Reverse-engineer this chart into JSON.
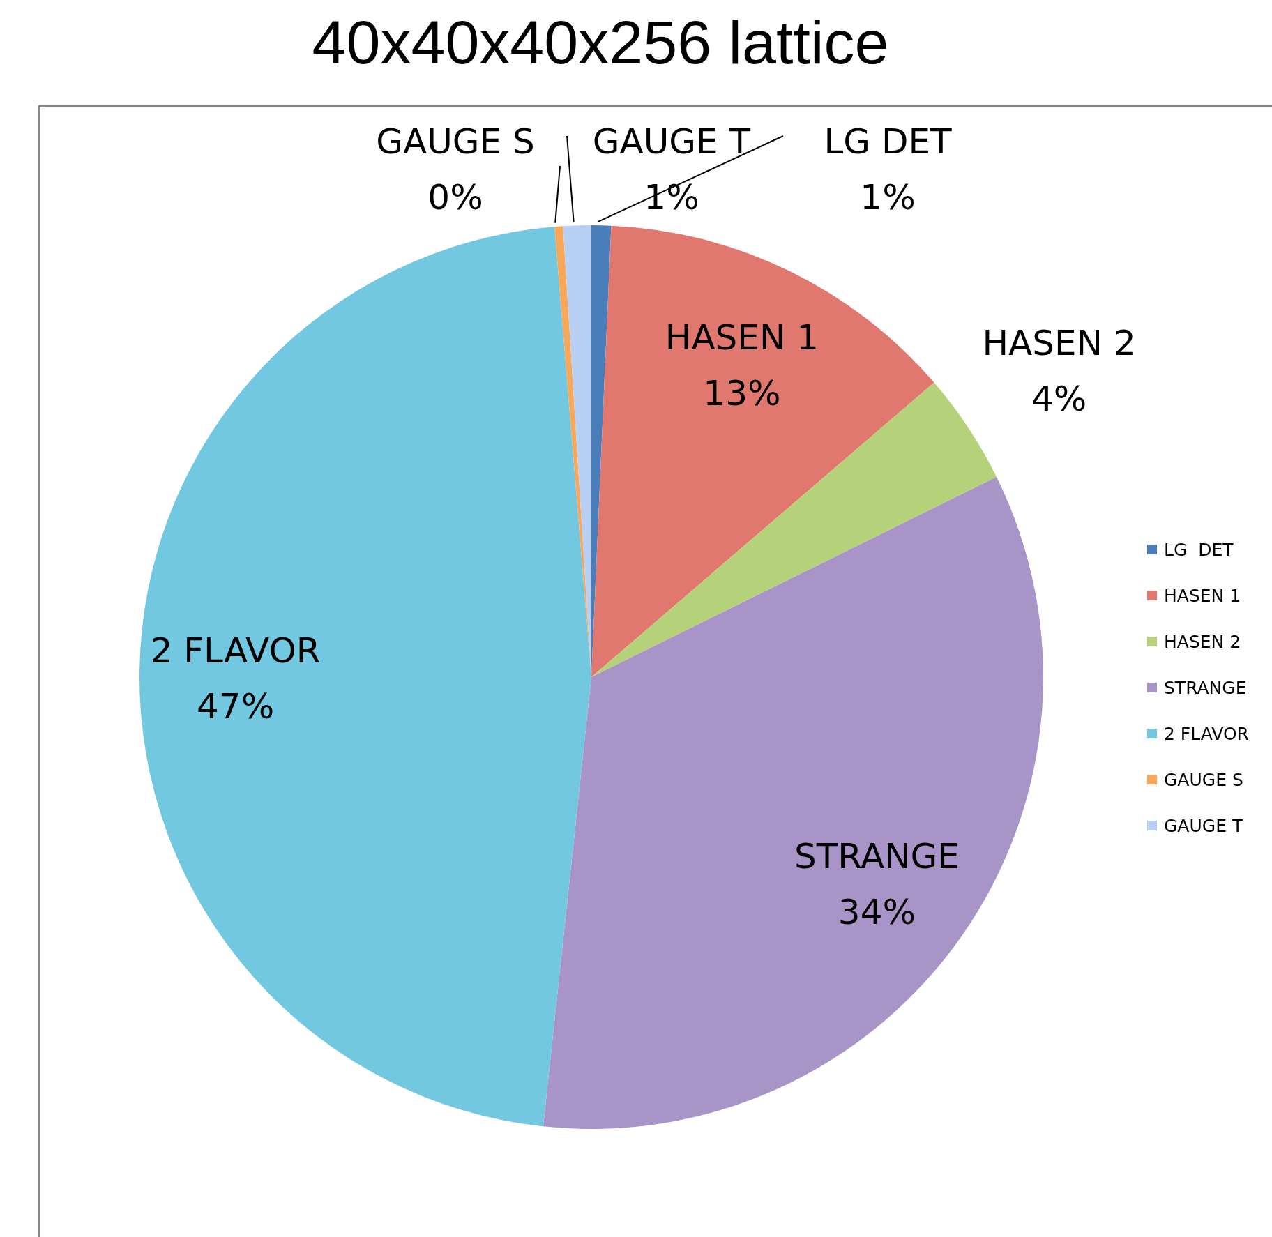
{
  "chart_data": {
    "type": "pie",
    "title": "40x40x40x256 lattice",
    "categories": [
      "LG  DET",
      "HASEN 1",
      "HASEN 2",
      "STRANGE",
      "2 FLAVOR",
      "GAUGE S",
      "GAUGE T"
    ],
    "values": [
      0.7,
      13,
      4,
      34,
      47,
      0.3,
      1
    ],
    "value_labels": [
      "1%",
      "13%",
      "4%",
      "34%",
      "47%",
      "0%",
      "1%"
    ],
    "colors": [
      "#4a7ebb",
      "#e07870",
      "#b5d27a",
      "#a994c8",
      "#72c8e0",
      "#f9a85a",
      "#b9d0f5"
    ],
    "legend": "right"
  }
}
